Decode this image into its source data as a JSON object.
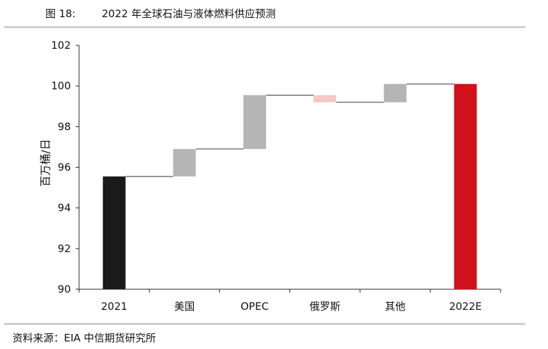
{
  "figure": {
    "label": "图 18:",
    "title": "2022 年全球石油与液体燃料供应预测",
    "source": "资料来源：EIA 中信期货研究所"
  },
  "colors": {
    "total_2021": "#1a1a1a",
    "change": "#b5b5b5",
    "decrease": "#f4c7c7",
    "total_2022": "#d0101a",
    "connector": "#333333",
    "rule": "#cfcfcf"
  },
  "chart_data": {
    "type": "bar",
    "subtype": "waterfall",
    "title": "2022 年全球石油与液体燃料供应预测",
    "xlabel": "",
    "ylabel": "百万桶/日",
    "ylim": [
      90,
      102
    ],
    "yticks": [
      90,
      92,
      94,
      96,
      98,
      100,
      102
    ],
    "grid": false,
    "categories": [
      "2021",
      "美国",
      "OPEC",
      "俄罗斯",
      "其他",
      "2022E"
    ],
    "bars": [
      {
        "category": "2021",
        "kind": "total",
        "start": 90,
        "end": 95.55
      },
      {
        "category": "美国",
        "kind": "increase",
        "start": 95.55,
        "end": 96.9
      },
      {
        "category": "OPEC",
        "kind": "increase",
        "start": 96.9,
        "end": 99.55
      },
      {
        "category": "俄罗斯",
        "kind": "decrease",
        "start": 99.55,
        "end": 99.2
      },
      {
        "category": "其他",
        "kind": "increase",
        "start": 99.2,
        "end": 100.1
      },
      {
        "category": "2022E",
        "kind": "total",
        "start": 90,
        "end": 100.1
      }
    ]
  }
}
